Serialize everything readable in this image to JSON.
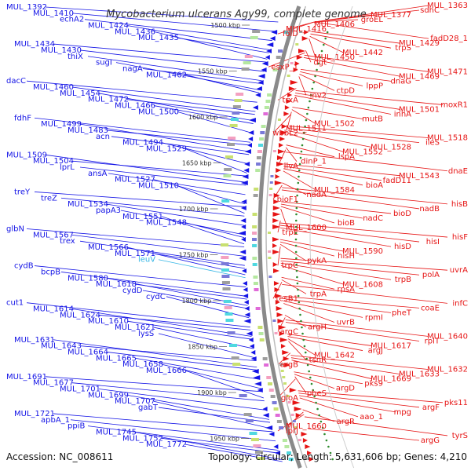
{
  "title": "Mycobacterium ulcerans Agy99, complete genome",
  "footer": {
    "accession": "Accession: NC_008611",
    "summary": "Topology: circular; Length: 5,631,606 bp; Genes: 4,210"
  },
  "colors": {
    "background": "#ffffff",
    "backbone": "#8a8a8a",
    "reverse_strand": "#1414e6",
    "forward_strand": "#e61414",
    "rna_label": "#33b5e5",
    "gc_dots": "#2e8b2e"
  },
  "ticks": [
    "1500 kbp",
    "1550 kbp",
    "1600 kbp",
    "1650 kbp",
    "1700 kbp",
    "1750 kbp",
    "1800 kbp",
    "1850 kbp",
    "1900 kbp",
    "1950 kbp"
  ],
  "left_labels": [
    {
      "text": "MUL_1392"
    },
    {
      "text": "MUL_1410"
    },
    {
      "text": "echA2"
    },
    {
      "text": "MUL_1424"
    },
    {
      "text": "MUL_1436"
    },
    {
      "text": "MUL_1435"
    },
    {
      "text": "MUL_1434"
    },
    {
      "text": "MUL_1430"
    },
    {
      "text": "thiX"
    },
    {
      "text": "sugI"
    },
    {
      "text": "nagA"
    },
    {
      "text": "MUL_1462"
    },
    {
      "text": "dacC"
    },
    {
      "text": "MUL_1460"
    },
    {
      "text": "MUL_1454"
    },
    {
      "text": "MUL_1472"
    },
    {
      "text": "MUL_1466"
    },
    {
      "text": "MUL_1500"
    },
    {
      "text": "fdhF"
    },
    {
      "text": "MUL_1499"
    },
    {
      "text": "MUL_1483"
    },
    {
      "text": "acn"
    },
    {
      "text": "MUL_1494"
    },
    {
      "text": "MUL_1529"
    },
    {
      "text": "MUL_1509"
    },
    {
      "text": "MUL_1504"
    },
    {
      "text": "lprL"
    },
    {
      "text": "ansA"
    },
    {
      "text": "MUL_1527"
    },
    {
      "text": "MUL_1510"
    },
    {
      "text": "treY"
    },
    {
      "text": "treZ"
    },
    {
      "text": "MUL_1534"
    },
    {
      "text": "papA3"
    },
    {
      "text": "MUL_1551"
    },
    {
      "text": "MUL_1548"
    },
    {
      "text": "glbN"
    },
    {
      "text": "MUL_1567"
    },
    {
      "text": "trex"
    },
    {
      "text": "MUL_1566"
    },
    {
      "text": "MUL_1571"
    },
    {
      "text": "leuV",
      "rna": true
    },
    {
      "text": "cydB"
    },
    {
      "text": "bcpB"
    },
    {
      "text": "MUL_1580"
    },
    {
      "text": "MUL_1618"
    },
    {
      "text": "cydD"
    },
    {
      "text": "cydC"
    },
    {
      "text": "cut1"
    },
    {
      "text": "MUL_1614"
    },
    {
      "text": "MUL_1624"
    },
    {
      "text": "MUL_1610"
    },
    {
      "text": "MUL_1621"
    },
    {
      "text": "lysS"
    },
    {
      "text": "MUL_1631"
    },
    {
      "text": "MUL_1643"
    },
    {
      "text": "MUL_1664"
    },
    {
      "text": "MUL_1665"
    },
    {
      "text": "MUL_1658"
    },
    {
      "text": "MUL_1666"
    },
    {
      "text": "MUL_1691"
    },
    {
      "text": "MUL_1677"
    },
    {
      "text": "MUL_1701"
    },
    {
      "text": "MUL_1699"
    },
    {
      "text": "MUL_1707"
    },
    {
      "text": "gabT"
    },
    {
      "text": "MUL_1721"
    },
    {
      "text": "apbA_1"
    },
    {
      "text": "ppiB"
    },
    {
      "text": "MUL_1745"
    },
    {
      "text": "MUL_1752"
    },
    {
      "text": "MUL_1772"
    }
  ],
  "right_labels": [
    {
      "text": "MUL_1363"
    },
    {
      "text": "sdhC"
    },
    {
      "text": "MUL_1377"
    },
    {
      "text": "groEL"
    },
    {
      "text": "MUL_1406"
    },
    {
      "text": "MUL_1416"
    },
    {
      "text": "folD"
    },
    {
      "text": "fadD28_1"
    },
    {
      "text": "MUL_1429"
    },
    {
      "text": "trpS"
    },
    {
      "text": "MUL_1442"
    },
    {
      "text": "MUL_1450"
    },
    {
      "text": "dgt"
    },
    {
      "text": "esxP_1"
    },
    {
      "text": "MUL_1471"
    },
    {
      "text": "MUL_1469"
    },
    {
      "text": "dnaG"
    },
    {
      "text": "lppP"
    },
    {
      "text": "ctpD"
    },
    {
      "text": "inv2"
    },
    {
      "text": "trxA"
    },
    {
      "text": "moxR1"
    },
    {
      "text": "MUL_1501"
    },
    {
      "text": "inhA"
    },
    {
      "text": "mutB"
    },
    {
      "text": "MUL_1502"
    },
    {
      "text": "MUL_1511"
    },
    {
      "text": "wbbL2"
    },
    {
      "text": "MUL_1518"
    },
    {
      "text": "ileS"
    },
    {
      "text": "MUL_1528"
    },
    {
      "text": "MUL_1552"
    },
    {
      "text": "lspA"
    },
    {
      "text": "dinP_1"
    },
    {
      "text": "ilvA"
    },
    {
      "text": "dnaE"
    },
    {
      "text": "MUL_1543"
    },
    {
      "text": "fadD11"
    },
    {
      "text": "bioA"
    },
    {
      "text": "MUL_1584"
    },
    {
      "text": "nadA"
    },
    {
      "text": "bioF1"
    },
    {
      "text": "hisB"
    },
    {
      "text": "nadB"
    },
    {
      "text": "bioD"
    },
    {
      "text": "nadC"
    },
    {
      "text": "bioB"
    },
    {
      "text": "MUL_1600"
    },
    {
      "text": "trpE"
    },
    {
      "text": "hisF"
    },
    {
      "text": "hisI"
    },
    {
      "text": "hisD"
    },
    {
      "text": "MUL_1590"
    },
    {
      "text": "hisH"
    },
    {
      "text": "pykA"
    },
    {
      "text": "trpC"
    },
    {
      "text": "uvrA"
    },
    {
      "text": "polA"
    },
    {
      "text": "trpB"
    },
    {
      "text": "MUL_1608"
    },
    {
      "text": "rpsA"
    },
    {
      "text": "trpA"
    },
    {
      "text": "tesB1"
    },
    {
      "text": "infC"
    },
    {
      "text": "coaE"
    },
    {
      "text": "pheT"
    },
    {
      "text": "rpmI"
    },
    {
      "text": "uvrB"
    },
    {
      "text": "argH"
    },
    {
      "text": "argC"
    },
    {
      "text": "MUL_1640"
    },
    {
      "text": "rplT"
    },
    {
      "text": "MUL_1617"
    },
    {
      "text": "argJ"
    },
    {
      "text": "MUL_1642"
    },
    {
      "text": "tsnR"
    },
    {
      "text": "argB"
    },
    {
      "text": "MUL_1632"
    },
    {
      "text": "MUL_1633"
    },
    {
      "text": "MUL_1669"
    },
    {
      "text": "pks9"
    },
    {
      "text": "argD"
    },
    {
      "text": "pheS"
    },
    {
      "text": "gloA"
    },
    {
      "text": "pks11"
    },
    {
      "text": "argF"
    },
    {
      "text": "mpg"
    },
    {
      "text": "aao_1"
    },
    {
      "text": "argR"
    },
    {
      "text": "MUL_1660"
    },
    {
      "text": "lprJ"
    },
    {
      "text": "tyrS"
    },
    {
      "text": "argG"
    }
  ]
}
